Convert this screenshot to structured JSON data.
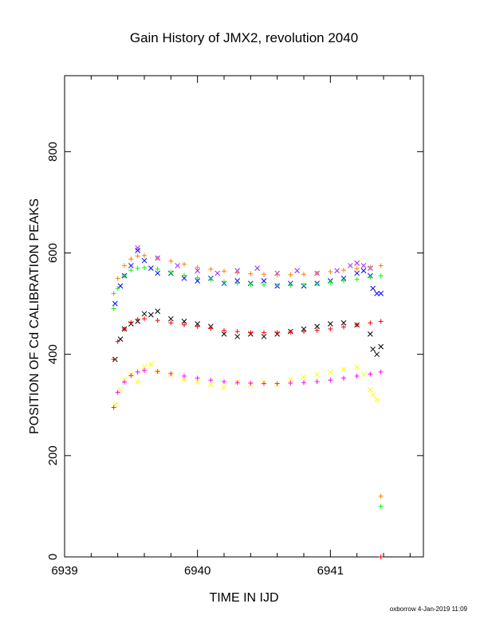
{
  "chart_data": {
    "type": "scatter",
    "title": "Gain History of JMX2, revolution 2040",
    "xlabel": "TIME IN IJD",
    "ylabel": "POSITION OF Cd CALIBRATION PEAKS",
    "xlim": [
      6939,
      6941.7
    ],
    "ylim": [
      0,
      950
    ],
    "x_ticks": [
      6939,
      6940,
      6941
    ],
    "y_ticks": [
      0,
      200,
      400,
      600,
      800
    ],
    "x_minor_ticks": [
      6939.2,
      6939.4,
      6939.6,
      6939.8,
      6940.2,
      6940.4,
      6940.6,
      6940.8,
      6941.2,
      6941.4,
      6941.6
    ],
    "grid": false,
    "legend": "none",
    "series": [
      {
        "marker": "x",
        "color": "#0000ff",
        "points": [
          [
            6939.38,
            500
          ],
          [
            6939.42,
            535
          ],
          [
            6939.45,
            555
          ],
          [
            6939.5,
            575
          ],
          [
            6939.55,
            605
          ],
          [
            6939.6,
            585
          ],
          [
            6939.65,
            570
          ],
          [
            6939.7,
            560
          ],
          [
            6939.8,
            560
          ],
          [
            6939.9,
            550
          ],
          [
            6940.0,
            545
          ],
          [
            6940.1,
            550
          ],
          [
            6940.2,
            540
          ],
          [
            6940.3,
            545
          ],
          [
            6940.4,
            540
          ],
          [
            6940.5,
            545
          ],
          [
            6940.6,
            535
          ],
          [
            6940.7,
            540
          ],
          [
            6940.8,
            535
          ],
          [
            6940.9,
            540
          ],
          [
            6941.0,
            545
          ],
          [
            6941.1,
            550
          ],
          [
            6941.2,
            560
          ],
          [
            6941.25,
            565
          ],
          [
            6941.3,
            555
          ],
          [
            6941.32,
            530
          ],
          [
            6941.35,
            520
          ],
          [
            6941.38,
            520
          ]
        ]
      },
      {
        "marker": "x",
        "color": "#a020f0",
        "points": [
          [
            6939.55,
            610
          ],
          [
            6939.7,
            590
          ],
          [
            6939.85,
            575
          ],
          [
            6940.0,
            565
          ],
          [
            6940.15,
            560
          ],
          [
            6940.3,
            565
          ],
          [
            6940.45,
            570
          ],
          [
            6940.6,
            560
          ],
          [
            6940.75,
            565
          ],
          [
            6940.9,
            560
          ],
          [
            6941.05,
            565
          ],
          [
            6941.15,
            575
          ],
          [
            6941.2,
            580
          ],
          [
            6941.25,
            575
          ],
          [
            6941.3,
            570
          ]
        ]
      },
      {
        "marker": "+",
        "color": "#ff7f00",
        "points": [
          [
            6939.37,
            520
          ],
          [
            6939.4,
            550
          ],
          [
            6939.45,
            575
          ],
          [
            6939.5,
            588
          ],
          [
            6939.55,
            594
          ],
          [
            6939.6,
            595
          ],
          [
            6939.7,
            590
          ],
          [
            6939.8,
            584
          ],
          [
            6939.9,
            578
          ],
          [
            6940.0,
            572
          ],
          [
            6940.1,
            568
          ],
          [
            6940.2,
            564
          ],
          [
            6940.3,
            561
          ],
          [
            6940.4,
            559
          ],
          [
            6940.5,
            558
          ],
          [
            6940.6,
            557
          ],
          [
            6940.7,
            557
          ],
          [
            6940.8,
            558
          ],
          [
            6940.9,
            560
          ],
          [
            6941.0,
            563
          ],
          [
            6941.1,
            566
          ],
          [
            6941.2,
            569
          ],
          [
            6941.3,
            572
          ],
          [
            6941.38,
            575
          ],
          [
            6941.38,
            120
          ]
        ]
      },
      {
        "marker": "+",
        "color": "#00ff00",
        "points": [
          [
            6939.37,
            490
          ],
          [
            6939.4,
            530
          ],
          [
            6939.45,
            555
          ],
          [
            6939.5,
            566
          ],
          [
            6939.55,
            570
          ],
          [
            6939.6,
            571
          ],
          [
            6939.7,
            568
          ],
          [
            6939.8,
            562
          ],
          [
            6939.9,
            556
          ],
          [
            6940.0,
            551
          ],
          [
            6940.1,
            547
          ],
          [
            6940.2,
            543
          ],
          [
            6940.3,
            540
          ],
          [
            6940.4,
            538
          ],
          [
            6940.5,
            537
          ],
          [
            6940.6,
            536
          ],
          [
            6940.7,
            536
          ],
          [
            6940.8,
            537
          ],
          [
            6940.9,
            539
          ],
          [
            6941.0,
            542
          ],
          [
            6941.1,
            545
          ],
          [
            6941.2,
            548
          ],
          [
            6941.3,
            552
          ],
          [
            6941.38,
            555
          ],
          [
            6941.38,
            100
          ]
        ]
      },
      {
        "marker": "x",
        "color": "#000000",
        "points": [
          [
            6939.38,
            390
          ],
          [
            6939.42,
            430
          ],
          [
            6939.45,
            450
          ],
          [
            6939.5,
            460
          ],
          [
            6939.55,
            465
          ],
          [
            6939.6,
            480
          ],
          [
            6939.65,
            478
          ],
          [
            6939.7,
            485
          ],
          [
            6939.8,
            470
          ],
          [
            6939.9,
            465
          ],
          [
            6940.0,
            460
          ],
          [
            6940.1,
            455
          ],
          [
            6940.2,
            440
          ],
          [
            6940.3,
            435
          ],
          [
            6940.4,
            440
          ],
          [
            6940.5,
            435
          ],
          [
            6940.6,
            440
          ],
          [
            6940.7,
            445
          ],
          [
            6940.8,
            450
          ],
          [
            6940.9,
            455
          ],
          [
            6941.0,
            460
          ],
          [
            6941.1,
            462
          ],
          [
            6941.2,
            458
          ],
          [
            6941.3,
            440
          ],
          [
            6941.32,
            410
          ],
          [
            6941.35,
            400
          ],
          [
            6941.38,
            415
          ]
        ]
      },
      {
        "marker": "+",
        "color": "#ff0000",
        "points": [
          [
            6939.37,
            390
          ],
          [
            6939.4,
            425
          ],
          [
            6939.45,
            450
          ],
          [
            6939.5,
            463
          ],
          [
            6939.55,
            469
          ],
          [
            6939.6,
            470
          ],
          [
            6939.7,
            467
          ],
          [
            6939.8,
            462
          ],
          [
            6939.9,
            458
          ],
          [
            6940.0,
            455
          ],
          [
            6940.1,
            451
          ],
          [
            6940.2,
            447
          ],
          [
            6940.3,
            445
          ],
          [
            6940.4,
            443
          ],
          [
            6940.5,
            443
          ],
          [
            6940.6,
            443
          ],
          [
            6940.7,
            444
          ],
          [
            6940.8,
            445
          ],
          [
            6940.9,
            447
          ],
          [
            6941.0,
            450
          ],
          [
            6941.1,
            454
          ],
          [
            6941.2,
            458
          ],
          [
            6941.3,
            462
          ],
          [
            6941.38,
            465
          ],
          [
            6941.38,
            0
          ]
        ]
      },
      {
        "marker": "x",
        "color": "#ffff00",
        "points": [
          [
            6939.38,
            300
          ],
          [
            6939.42,
            330
          ],
          [
            6939.45,
            350
          ],
          [
            6939.5,
            360
          ],
          [
            6939.55,
            345
          ],
          [
            6939.6,
            375
          ],
          [
            6939.65,
            380
          ],
          [
            6939.7,
            365
          ],
          [
            6939.8,
            360
          ],
          [
            6939.9,
            350
          ],
          [
            6940.0,
            345
          ],
          [
            6940.1,
            340
          ],
          [
            6940.2,
            335
          ],
          [
            6940.3,
            345
          ],
          [
            6940.4,
            340
          ],
          [
            6940.5,
            345
          ],
          [
            6940.6,
            340
          ],
          [
            6940.7,
            350
          ],
          [
            6940.8,
            355
          ],
          [
            6940.9,
            360
          ],
          [
            6941.0,
            365
          ],
          [
            6941.1,
            370
          ],
          [
            6941.2,
            375
          ],
          [
            6941.25,
            360
          ],
          [
            6941.3,
            330
          ],
          [
            6941.32,
            320
          ],
          [
            6941.35,
            310
          ]
        ]
      },
      {
        "marker": "+",
        "color": "#ff00ff",
        "points": [
          [
            6939.37,
            295
          ],
          [
            6939.4,
            325
          ],
          [
            6939.45,
            345
          ],
          [
            6939.5,
            358
          ],
          [
            6939.55,
            365
          ],
          [
            6939.6,
            368
          ],
          [
            6939.7,
            366
          ],
          [
            6939.8,
            362
          ],
          [
            6939.9,
            357
          ],
          [
            6940.0,
            353
          ],
          [
            6940.1,
            349
          ],
          [
            6940.2,
            346
          ],
          [
            6940.3,
            344
          ],
          [
            6940.4,
            343
          ],
          [
            6940.5,
            342
          ],
          [
            6940.6,
            342
          ],
          [
            6940.7,
            343
          ],
          [
            6940.8,
            344
          ],
          [
            6940.9,
            346
          ],
          [
            6941.0,
            349
          ],
          [
            6941.1,
            353
          ],
          [
            6941.2,
            357
          ],
          [
            6941.3,
            361
          ],
          [
            6941.38,
            365
          ]
        ]
      }
    ]
  },
  "footer": {
    "credit": "oxborrow  4-Jan-2019 11:09"
  }
}
